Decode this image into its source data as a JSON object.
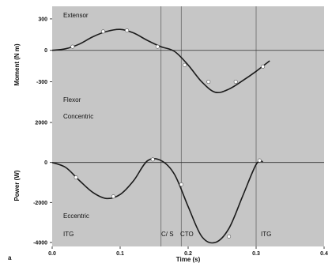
{
  "colors": {
    "panel_bg": "#c6c6c6",
    "line": "#1a1a1a",
    "marker_fill": "#ffffff",
    "event_line": "#7a7a7a"
  },
  "panel_label": "a",
  "chart_data": [
    {
      "type": "line",
      "ylabel": "Moment (N m)",
      "xlabel": "",
      "xlim": [
        0.0,
        0.4
      ],
      "ylim": [
        -650,
        420
      ],
      "yticks": [
        {
          "value": 300,
          "label": "300"
        },
        {
          "value": 0,
          "label": "0"
        },
        {
          "value": -300,
          "label": "-300"
        }
      ],
      "grid": false,
      "series": [
        {
          "x": [
            0.0,
            0.02,
            0.04,
            0.06,
            0.08,
            0.1,
            0.12,
            0.14,
            0.16,
            0.18,
            0.2,
            0.22,
            0.24,
            0.26,
            0.28,
            0.3,
            0.32
          ],
          "y": [
            0,
            15,
            60,
            130,
            180,
            200,
            165,
            95,
            35,
            -10,
            -140,
            -300,
            -400,
            -370,
            -290,
            -200,
            -100
          ]
        }
      ],
      "markers": [
        {
          "x": 0.03,
          "y": 35
        },
        {
          "x": 0.075,
          "y": 180
        },
        {
          "x": 0.11,
          "y": 190
        },
        {
          "x": 0.155,
          "y": 35
        },
        {
          "x": 0.195,
          "y": -140
        },
        {
          "x": 0.23,
          "y": -300
        },
        {
          "x": 0.27,
          "y": -300
        },
        {
          "x": 0.31,
          "y": -155
        }
      ],
      "annotations": [
        {
          "text": "Extensor"
        },
        {
          "text": "Flexor"
        }
      ]
    },
    {
      "type": "line",
      "ylabel": "Power (W)",
      "xlabel": "Time (s)",
      "xlim": [
        0.0,
        0.4
      ],
      "ylim": [
        -4200,
        2200
      ],
      "xticks": [
        {
          "value": 0.0,
          "label": "0.0"
        },
        {
          "value": 0.1,
          "label": "0.1"
        },
        {
          "value": 0.2,
          "label": "0.2"
        },
        {
          "value": 0.3,
          "label": "0.3"
        },
        {
          "value": 0.4,
          "label": "0.4"
        }
      ],
      "yticks": [
        {
          "value": 2000,
          "label": "2000"
        },
        {
          "value": 0,
          "label": "0"
        },
        {
          "value": -2000,
          "label": "-2000"
        },
        {
          "value": -4000,
          "label": "-4000"
        }
      ],
      "grid": false,
      "series": [
        {
          "x": [
            0.0,
            0.02,
            0.04,
            0.06,
            0.08,
            0.1,
            0.12,
            0.14,
            0.16,
            0.18,
            0.2,
            0.22,
            0.24,
            0.26,
            0.28,
            0.3,
            0.31
          ],
          "y": [
            0,
            -250,
            -900,
            -1500,
            -1800,
            -1600,
            -900,
            80,
            100,
            -600,
            -2200,
            -3700,
            -4000,
            -3300,
            -1700,
            -100,
            50
          ]
        }
      ],
      "markers": [
        {
          "x": 0.035,
          "y": -750
        },
        {
          "x": 0.09,
          "y": -1700
        },
        {
          "x": 0.148,
          "y": 150
        },
        {
          "x": 0.19,
          "y": -1100
        },
        {
          "x": 0.26,
          "y": -3700
        },
        {
          "x": 0.305,
          "y": 100
        }
      ],
      "annotations": [
        {
          "text": "Concentric"
        },
        {
          "text": "Eccentric"
        }
      ]
    }
  ],
  "events": [
    {
      "x": 0.0,
      "label": "ITG"
    },
    {
      "x": 0.16,
      "label": "C/ S"
    },
    {
      "x": 0.19,
      "label": "CTO"
    },
    {
      "x": 0.3,
      "label": "ITG"
    }
  ]
}
